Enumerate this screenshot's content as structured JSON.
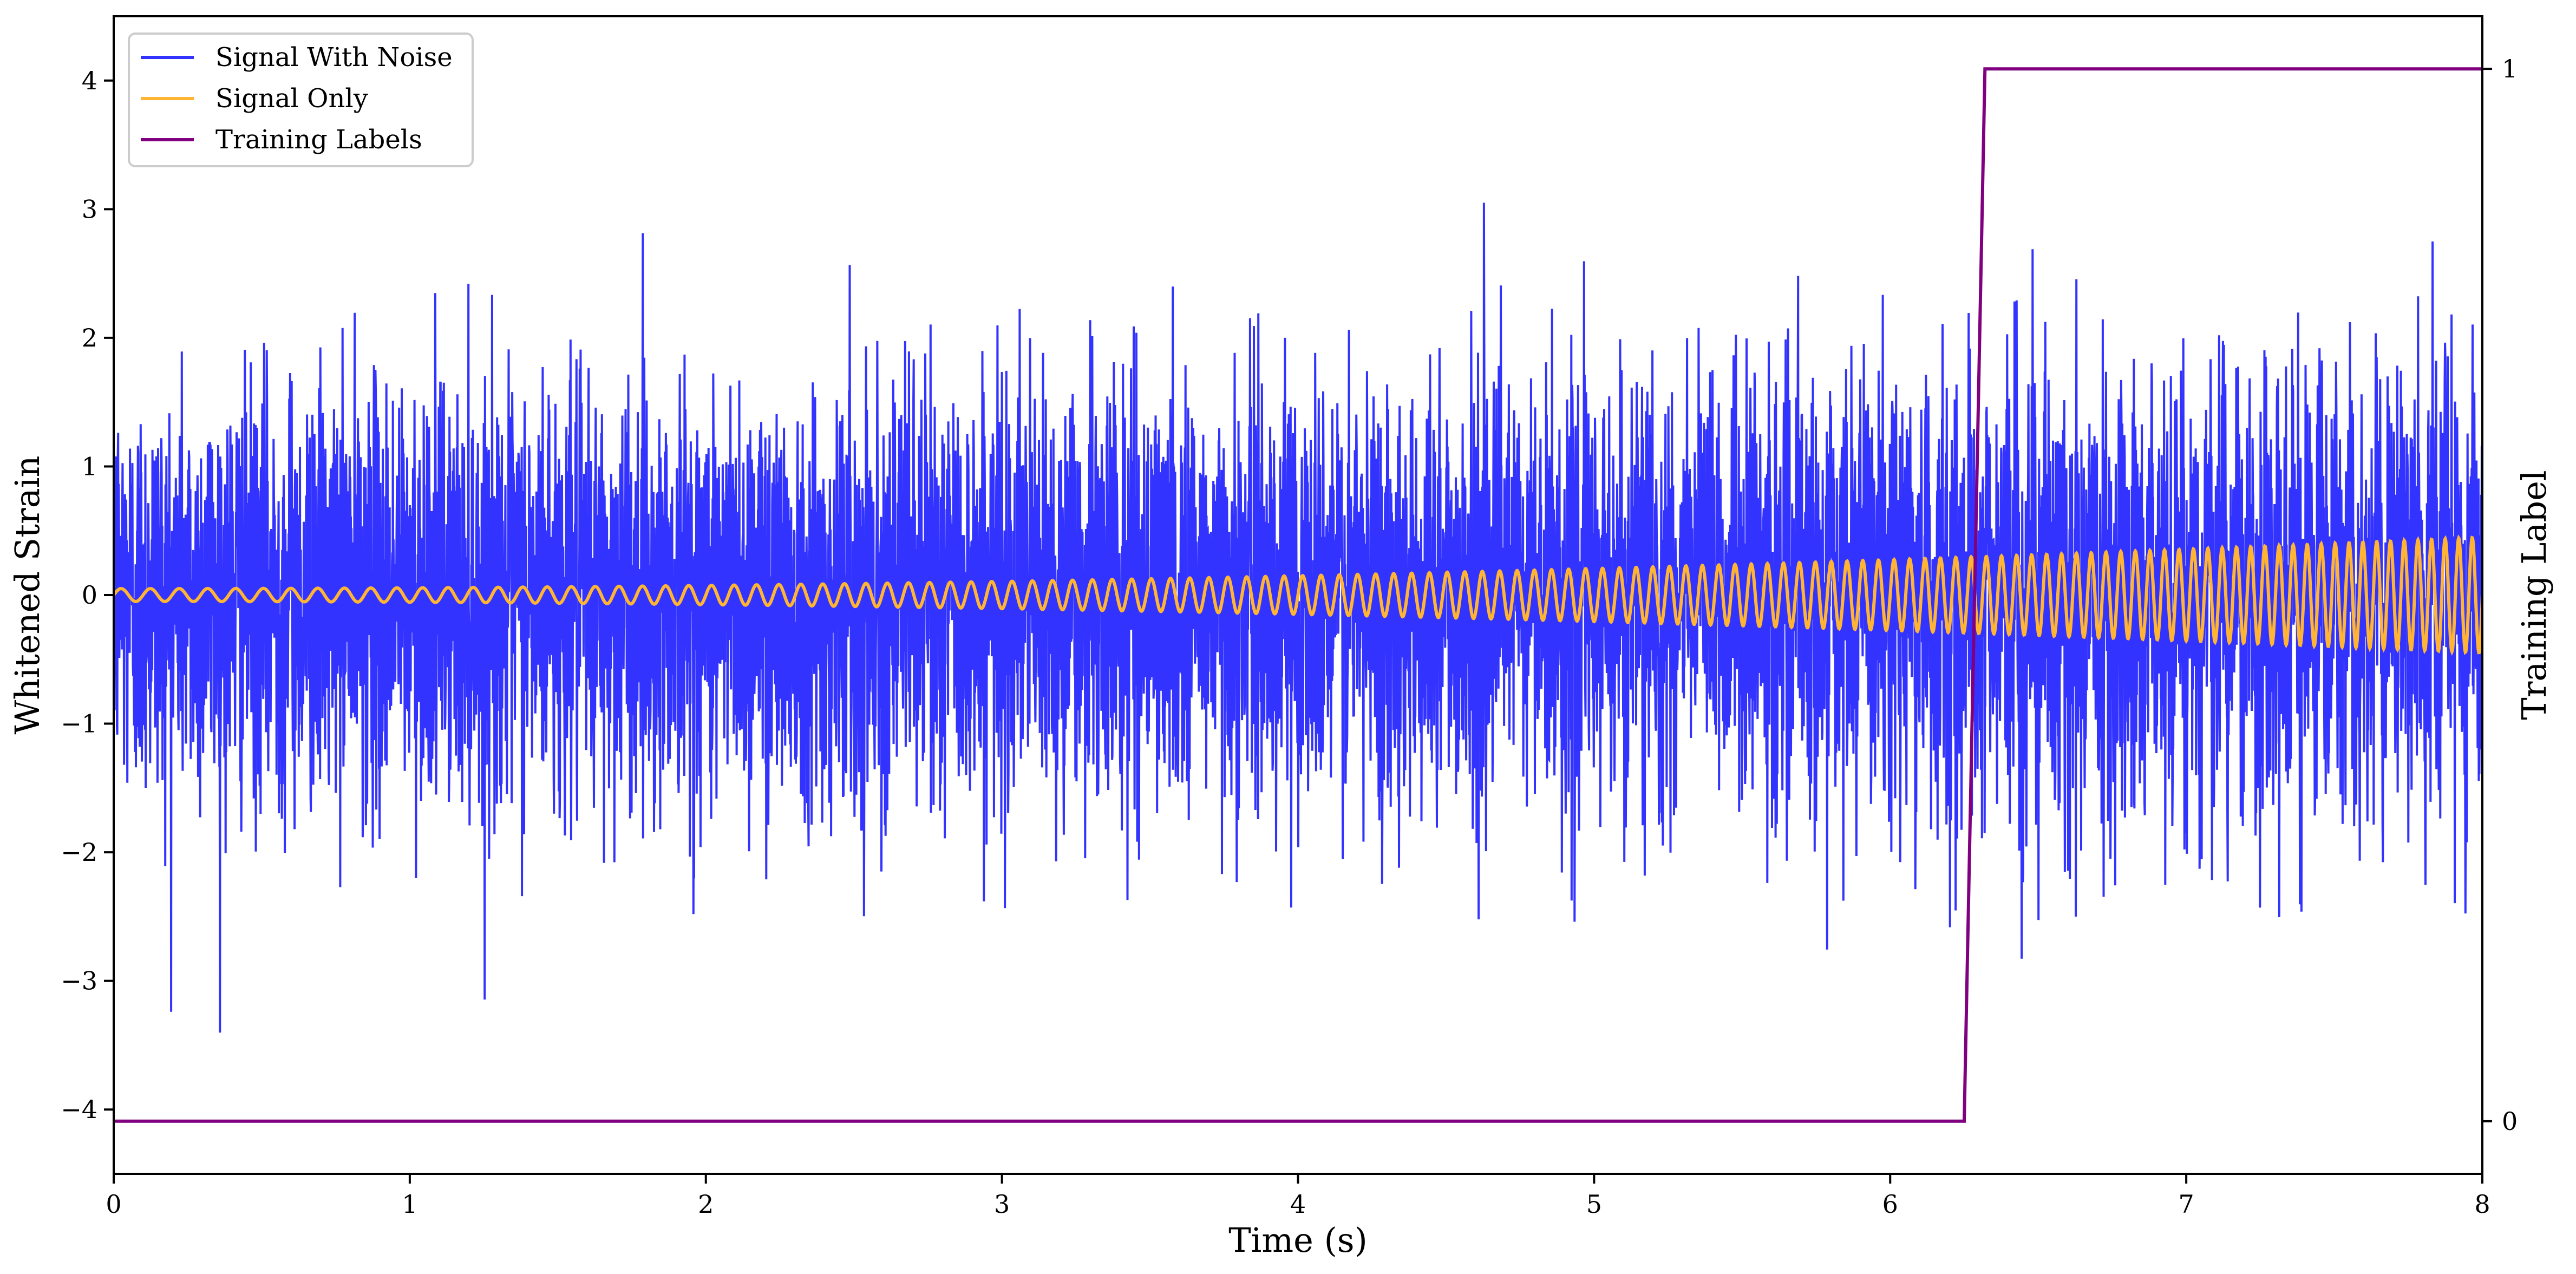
{
  "chart_data": {
    "type": "line",
    "title": "",
    "xlabel": "Time (s)",
    "ylabel": "Whitened Strain",
    "y2label": "Training Label",
    "xlim": [
      0,
      8
    ],
    "ylim": [
      -4.5,
      4.5
    ],
    "y2lim": [
      -0.05,
      1.05
    ],
    "x_ticks": [
      0,
      1,
      2,
      3,
      4,
      5,
      6,
      7,
      8
    ],
    "y_ticks": [
      -4,
      -3,
      -2,
      -1,
      0,
      1,
      2,
      3,
      4
    ],
    "y_tick_labels": [
      "−4",
      "−3",
      "−2",
      "−1",
      "0",
      "1",
      "2",
      "3",
      "4"
    ],
    "y2_ticks": [
      0,
      1
    ],
    "legend_position": "top-left",
    "grid": false,
    "series": [
      {
        "name": "Signal With Noise",
        "color": "#3333ff",
        "axis": "left",
        "description_values": {
          "noise_std": 1.0,
          "approx_min": -3.75,
          "approx_max": 3.45
        }
      },
      {
        "name": "Signal Only",
        "color": "#ffb533",
        "axis": "left",
        "chirp": {
          "amplitude_start": 0.05,
          "amplitude_end": 0.45,
          "freq_start_hz": 10,
          "freq_end_hz": 22
        }
      },
      {
        "name": "Training Labels",
        "color": "#800080",
        "axis": "right",
        "x": [
          0,
          6.25,
          6.32,
          8
        ],
        "y": [
          0,
          0,
          1,
          1
        ]
      }
    ]
  }
}
